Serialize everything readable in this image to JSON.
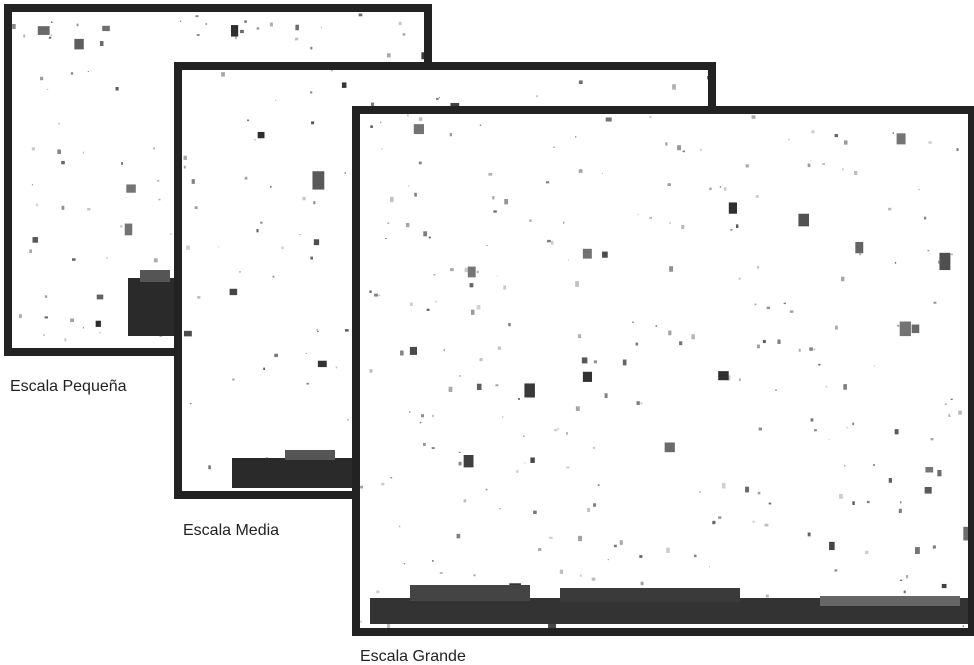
{
  "panels": [
    {
      "label": "Escala Pequeña"
    },
    {
      "label": "Escala Media"
    },
    {
      "label": "Escala Grande"
    }
  ]
}
